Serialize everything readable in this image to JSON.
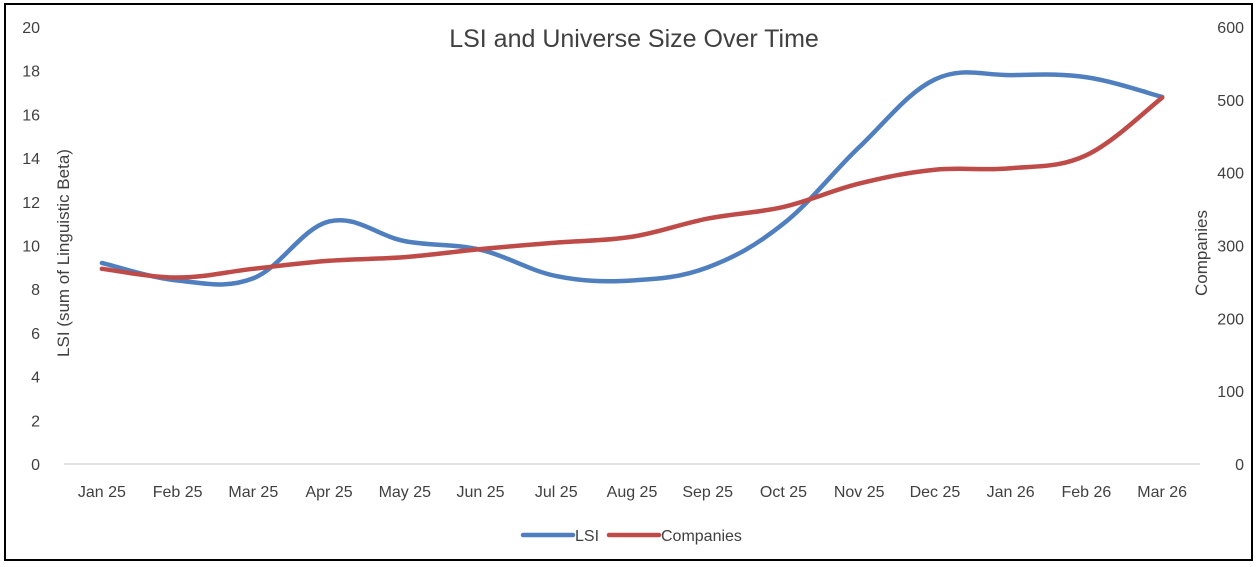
{
  "chart_data": {
    "type": "line",
    "title": "LSI and Universe Size Over Time",
    "categories": [
      "Jan 25",
      "Feb 25",
      "Mar 25",
      "Apr 25",
      "May 25",
      "Jun 25",
      "Jul 25",
      "Aug 25",
      "Sep 25",
      "Oct 25",
      "Nov 25",
      "Dec 25",
      "Jan 26",
      "Feb 26",
      "Mar 26"
    ],
    "xlabel": "",
    "ylabel": "LSI (sum of Linguistic Beta)",
    "y2label": "Companies",
    "ylim": [
      0,
      20
    ],
    "y2lim": [
      0,
      600
    ],
    "yticks": [
      "0",
      "2",
      "4",
      "6",
      "8",
      "10",
      "12",
      "14",
      "16",
      "18",
      "20"
    ],
    "y2ticks": [
      "0",
      "100",
      "200",
      "300",
      "400",
      "500",
      "600"
    ],
    "grid": false,
    "legend_position": "bottom",
    "series": [
      {
        "name": "LSI",
        "axis": "left",
        "color": "#4F7FBF",
        "values": [
          9.2,
          8.4,
          8.5,
          11.1,
          10.2,
          9.8,
          8.6,
          8.4,
          9.0,
          11.0,
          14.5,
          17.6,
          17.8,
          17.7,
          16.8
        ]
      },
      {
        "name": "Companies",
        "axis": "right",
        "color": "#BE4B48",
        "values": [
          268,
          256,
          268,
          279,
          284,
          295,
          304,
          312,
          337,
          353,
          385,
          404,
          406,
          424,
          503
        ]
      }
    ]
  }
}
